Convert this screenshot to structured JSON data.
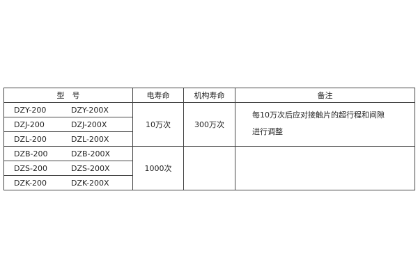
{
  "headers": [
    "型　号",
    "电寿命",
    "机构寿命",
    "备注"
  ],
  "models": [
    [
      "DZY-200",
      "DZY-200X"
    ],
    [
      "DZJ-200",
      "DZJ-200X"
    ],
    [
      "DZL-200",
      "DZL-200X"
    ],
    [
      "DZB-200",
      "DZB-200X"
    ],
    [
      "DZS-200",
      "DZS-200X"
    ],
    [
      "DZK-200",
      "DZK-200X"
    ]
  ],
  "groups": [
    {
      "electrical_life": "10万次",
      "mechanical_life": "300万次",
      "note_lines": [
        "每10万次后应对接触片的超行程和间隙",
        "进行调整"
      ]
    },
    {
      "electrical_life": "1000次",
      "mechanical_life": "",
      "note_lines": []
    }
  ]
}
